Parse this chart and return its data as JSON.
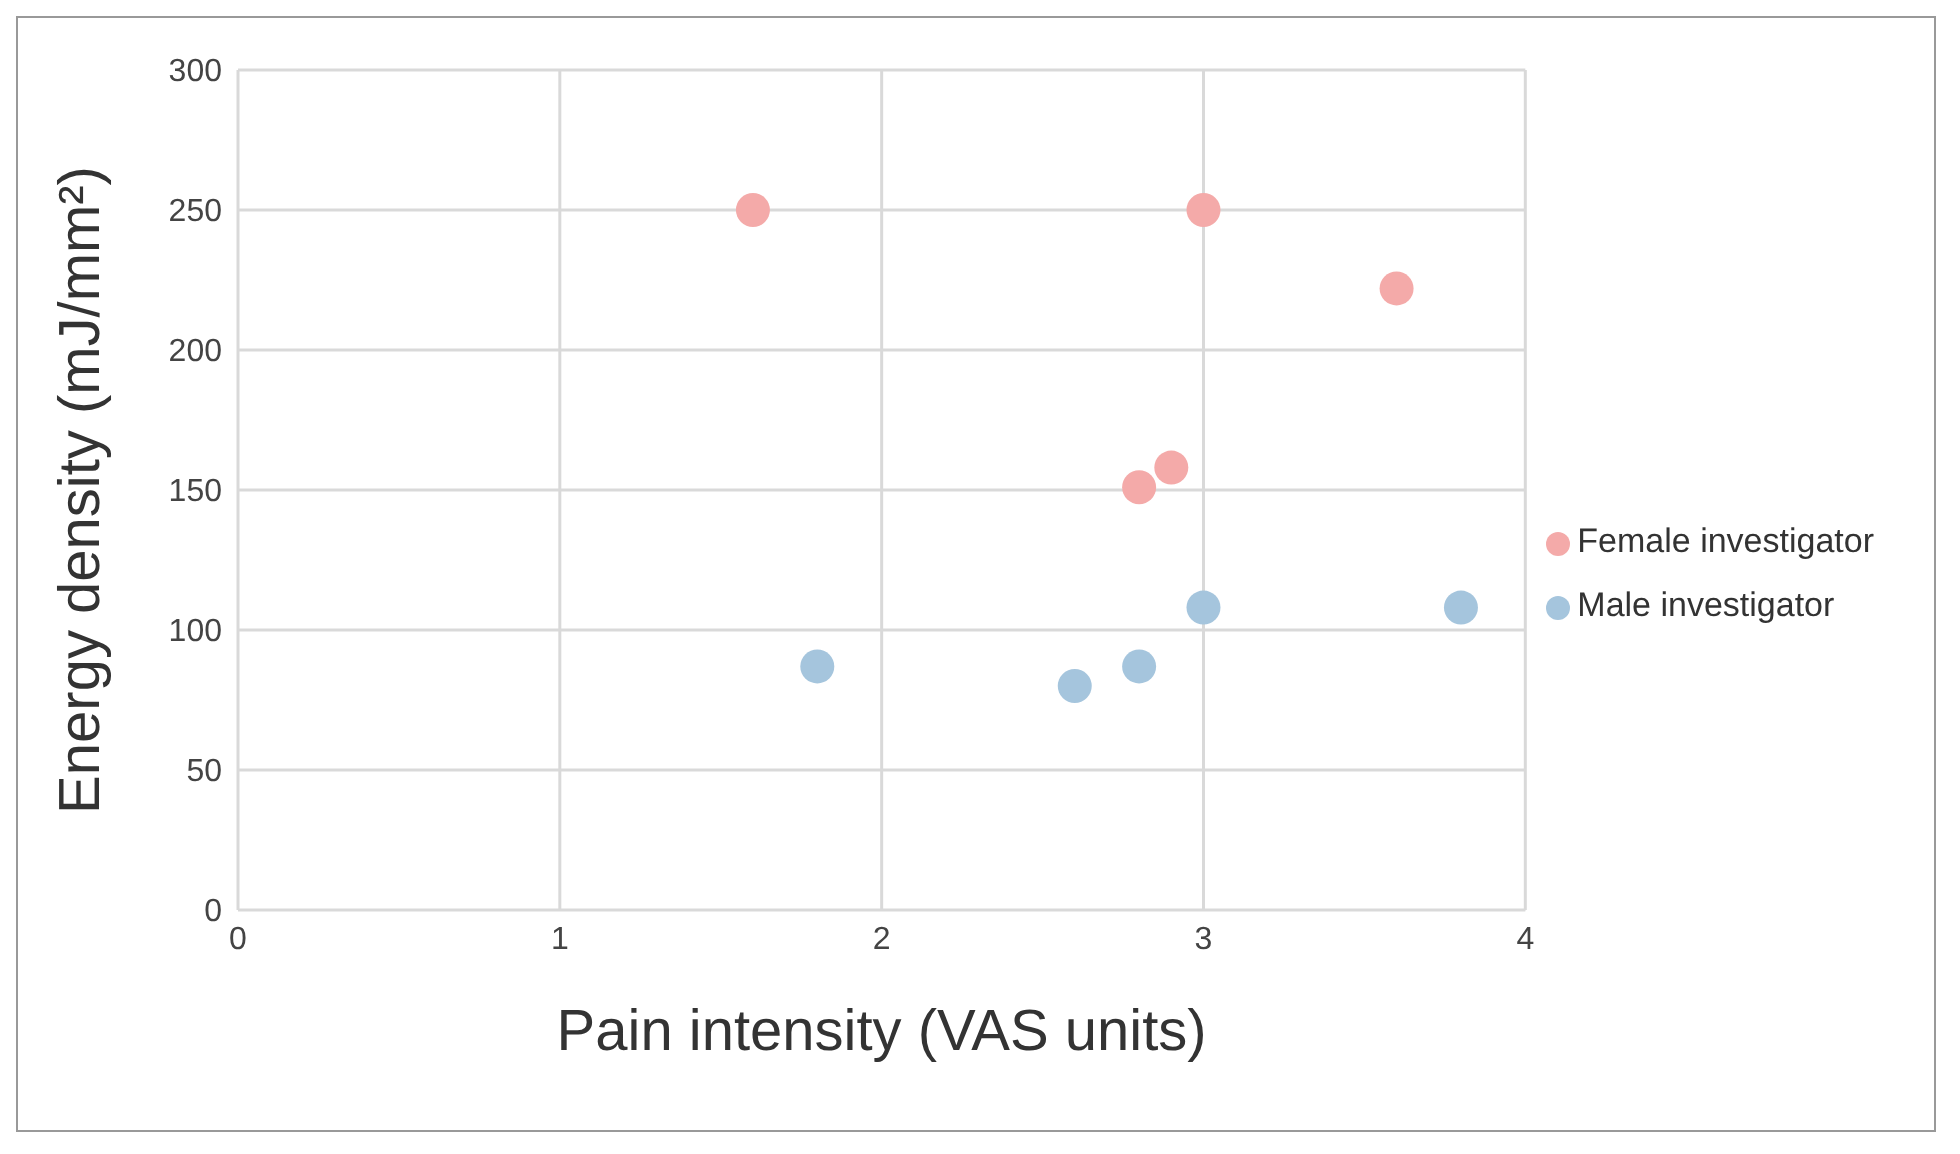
{
  "chart_data": {
    "type": "scatter",
    "xlabel": "Pain intensity (VAS units)",
    "ylabel": "Energy density (mJ/mm²)",
    "xlim": [
      0,
      4
    ],
    "xticks": [
      0,
      1,
      2,
      3,
      4
    ],
    "ylim": [
      0,
      300
    ],
    "yticks": [
      0,
      50,
      100,
      150,
      200,
      250,
      300
    ],
    "grid": true,
    "legend": "right",
    "marker": "circle",
    "series": [
      {
        "name": "Female investigator",
        "color": "#f4aaa9",
        "x": [
          1.6,
          3.0,
          3.6,
          2.9,
          2.8
        ],
        "values": [
          250,
          250,
          222,
          158,
          151
        ]
      },
      {
        "name": "Male investigator",
        "color": "#a5c5dd",
        "x": [
          1.8,
          2.6,
          2.8,
          3.0,
          3.8
        ],
        "values": [
          87,
          80,
          87,
          108,
          108
        ]
      }
    ]
  }
}
